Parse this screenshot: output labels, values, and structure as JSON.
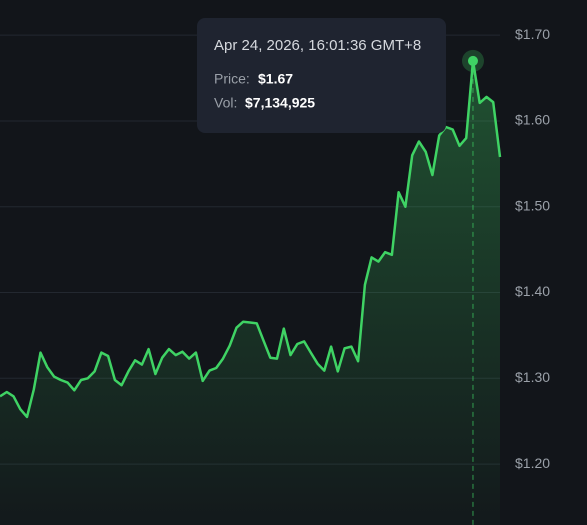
{
  "chart_data": {
    "type": "area-line",
    "values": [
      1.279,
      1.284,
      1.279,
      1.264,
      1.255,
      1.287,
      1.33,
      1.313,
      1.302,
      1.298,
      1.295,
      1.286,
      1.298,
      1.3,
      1.308,
      1.33,
      1.326,
      1.298,
      1.292,
      1.308,
      1.321,
      1.316,
      1.334,
      1.305,
      1.324,
      1.334,
      1.327,
      1.331,
      1.323,
      1.33,
      1.297,
      1.309,
      1.312,
      1.323,
      1.338,
      1.359,
      1.366,
      1.365,
      1.364,
      1.344,
      1.324,
      1.323,
      1.358,
      1.327,
      1.34,
      1.343,
      1.33,
      1.317,
      1.309,
      1.337,
      1.308,
      1.335,
      1.337,
      1.32,
      1.409,
      1.441,
      1.436,
      1.447,
      1.444,
      1.517,
      1.5,
      1.56,
      1.576,
      1.564,
      1.537,
      1.583,
      1.593,
      1.59,
      1.571,
      1.58,
      1.67,
      1.621,
      1.628,
      1.622,
      1.558
    ],
    "color": "#3fd364",
    "ylim": [
      1.129,
      1.741
    ],
    "yticks": [
      {
        "value": 1.2,
        "label": "$1.20"
      },
      {
        "value": 1.3,
        "label": "$1.30"
      },
      {
        "value": 1.4,
        "label": "$1.40"
      },
      {
        "value": 1.5,
        "label": "$1.50"
      },
      {
        "value": 1.6,
        "label": "$1.60"
      },
      {
        "value": 1.7,
        "label": "$1.70"
      }
    ],
    "grid": true,
    "tooltip": {
      "date": "Apr 24, 2026, 16:01:36 GMT+8",
      "price_label": "Price:",
      "price": "$1.67",
      "vol_label": "Vol:",
      "vol": "$7,134,925"
    }
  }
}
